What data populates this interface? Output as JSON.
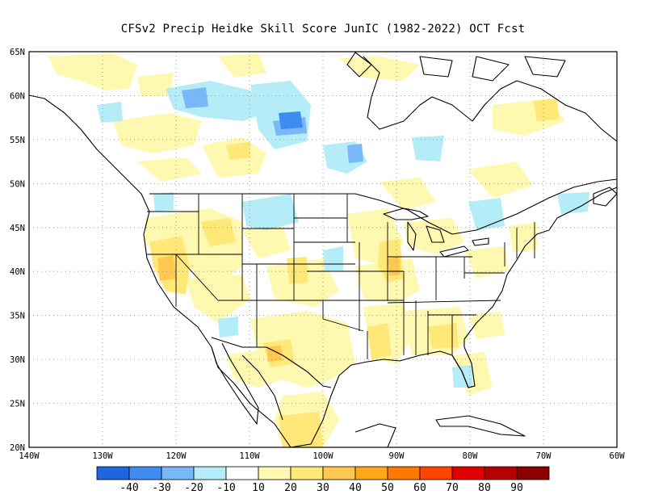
{
  "title": "CFSv2 Precip Heidke Skill Score JunIC (1982-2022) OCT Fcst",
  "map": {
    "lon_range": [
      -140,
      -60
    ],
    "lat_range": [
      20,
      65
    ],
    "lat_labels": [
      "65N",
      "60N",
      "55N",
      "50N",
      "45N",
      "40N",
      "35N",
      "30N",
      "25N",
      "20N"
    ],
    "lon_labels": [
      "140W",
      "130W",
      "120W",
      "110W",
      "100W",
      "90W",
      "80W",
      "70W",
      "60W"
    ]
  },
  "legend": {
    "labels": [
      "-40",
      "-30",
      "-20",
      "-10",
      "10",
      "20",
      "30",
      "40",
      "50",
      "60",
      "70",
      "80",
      "90"
    ],
    "colors": [
      "#1f65e0",
      "#3f8cf0",
      "#78b8f8",
      "#b4ecf8",
      "#ffffff",
      "#fff8b0",
      "#ffe878",
      "#ffc850",
      "#ffa818",
      "#ff7800",
      "#ff4400",
      "#e00000",
      "#b40000",
      "#8c0000"
    ]
  }
}
